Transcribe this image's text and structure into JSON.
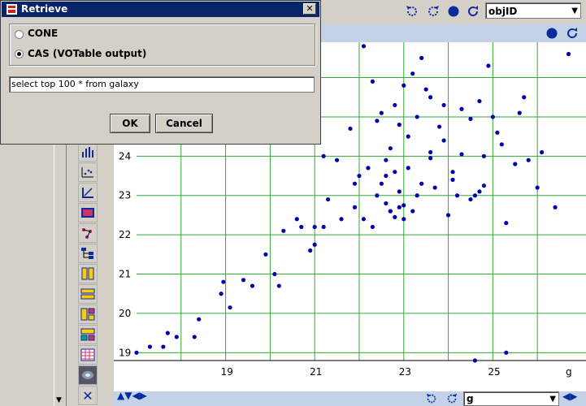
{
  "dialog": {
    "title": "Retrieve",
    "options": [
      {
        "label": "CONE",
        "selected": false
      },
      {
        "label": "CAS (VOTable output)",
        "selected": true
      }
    ],
    "query_value": "select top 100 * from galaxy",
    "ok_label": "OK",
    "cancel_label": "Cancel"
  },
  "toolbar": {
    "column_select": "objID",
    "bottom_select": "g"
  },
  "colors": {
    "grid": "#33aa33",
    "point": "#0000aa",
    "strip": "#c4d2e8"
  },
  "chart_data": {
    "type": "scatter",
    "title": "",
    "xlabel": "g",
    "ylabel": "",
    "xlim": [
      17.0,
      26.8
    ],
    "ylim": [
      18.8,
      26.9
    ],
    "x_ticks": [
      "19",
      "21",
      "23",
      "25"
    ],
    "y_ticks": [
      "19",
      "20",
      "21",
      "22",
      "23",
      "24"
    ],
    "x_tick_values": [
      19,
      21,
      23,
      25
    ],
    "y_tick_values": [
      19,
      20,
      21,
      22,
      23,
      24
    ],
    "grid": true,
    "points": [
      [
        17.0,
        19.0
      ],
      [
        17.3,
        19.15
      ],
      [
        17.6,
        19.15
      ],
      [
        17.7,
        19.5
      ],
      [
        17.9,
        19.4
      ],
      [
        18.3,
        19.4
      ],
      [
        18.4,
        19.85
      ],
      [
        18.9,
        20.5
      ],
      [
        18.95,
        20.8
      ],
      [
        19.1,
        20.15
      ],
      [
        19.4,
        20.85
      ],
      [
        19.6,
        20.7
      ],
      [
        19.9,
        21.5
      ],
      [
        20.1,
        21.0
      ],
      [
        20.2,
        20.7
      ],
      [
        20.2,
        24.5
      ],
      [
        20.3,
        22.1
      ],
      [
        20.6,
        22.4
      ],
      [
        20.7,
        22.2
      ],
      [
        20.9,
        21.6
      ],
      [
        20.9,
        24.4
      ],
      [
        21.0,
        21.75
      ],
      [
        21.0,
        22.2
      ],
      [
        21.2,
        24.0
      ],
      [
        21.2,
        22.2
      ],
      [
        21.3,
        22.9
      ],
      [
        21.6,
        22.4
      ],
      [
        21.9,
        23.3
      ],
      [
        22.0,
        23.5
      ],
      [
        22.1,
        22.4
      ],
      [
        22.3,
        22.2
      ],
      [
        22.4,
        23.0
      ],
      [
        22.5,
        23.3
      ],
      [
        22.6,
        22.8
      ],
      [
        22.6,
        23.5
      ],
      [
        22.7,
        22.6
      ],
      [
        22.7,
        22.6
      ],
      [
        22.8,
        22.45
      ],
      [
        22.9,
        23.1
      ],
      [
        22.9,
        22.7
      ],
      [
        23.0,
        22.4
      ],
      [
        23.0,
        22.75
      ],
      [
        23.1,
        23.7
      ],
      [
        23.1,
        24.5
      ],
      [
        23.2,
        22.6
      ],
      [
        23.3,
        25.0
      ],
      [
        23.4,
        23.3
      ],
      [
        23.5,
        25.7
      ],
      [
        23.6,
        23.95
      ],
      [
        23.7,
        23.2
      ],
      [
        23.8,
        24.75
      ],
      [
        23.9,
        24.4
      ],
      [
        24.0,
        22.5
      ],
      [
        24.1,
        23.6
      ],
      [
        24.2,
        23.0
      ],
      [
        24.3,
        24.05
      ],
      [
        24.5,
        24.95
      ],
      [
        24.6,
        23.0
      ],
      [
        24.7,
        23.1
      ],
      [
        24.7,
        25.4
      ],
      [
        24.8,
        24.0
      ],
      [
        24.9,
        26.3
      ],
      [
        25.0,
        25.0
      ],
      [
        25.1,
        24.6
      ],
      [
        25.2,
        24.3
      ],
      [
        25.3,
        22.3
      ],
      [
        25.5,
        23.8
      ],
      [
        25.6,
        25.1
      ],
      [
        25.8,
        23.9
      ],
      [
        26.0,
        23.2
      ],
      [
        26.1,
        24.1
      ],
      [
        26.4,
        22.7
      ],
      [
        22.1,
        26.8
      ],
      [
        22.3,
        25.9
      ],
      [
        22.5,
        25.1
      ],
      [
        22.8,
        25.3
      ],
      [
        23.0,
        25.8
      ],
      [
        23.2,
        26.1
      ],
      [
        23.4,
        26.5
      ],
      [
        23.6,
        25.5
      ],
      [
        22.9,
        24.8
      ],
      [
        22.7,
        24.2
      ],
      [
        21.8,
        24.7
      ],
      [
        22.4,
        24.9
      ],
      [
        23.9,
        25.3
      ],
      [
        24.3,
        25.2
      ],
      [
        21.5,
        23.9
      ],
      [
        22.2,
        23.7
      ],
      [
        24.5,
        22.9
      ],
      [
        25.7,
        25.5
      ],
      [
        23.6,
        24.1
      ],
      [
        22.6,
        23.9
      ],
      [
        24.1,
        23.4
      ],
      [
        26.7,
        26.6
      ],
      [
        25.3,
        19.0
      ],
      [
        24.6,
        18.8
      ],
      [
        22.8,
        23.6
      ],
      [
        23.3,
        23.0
      ],
      [
        21.9,
        22.7
      ],
      [
        24.8,
        23.25
      ]
    ]
  }
}
